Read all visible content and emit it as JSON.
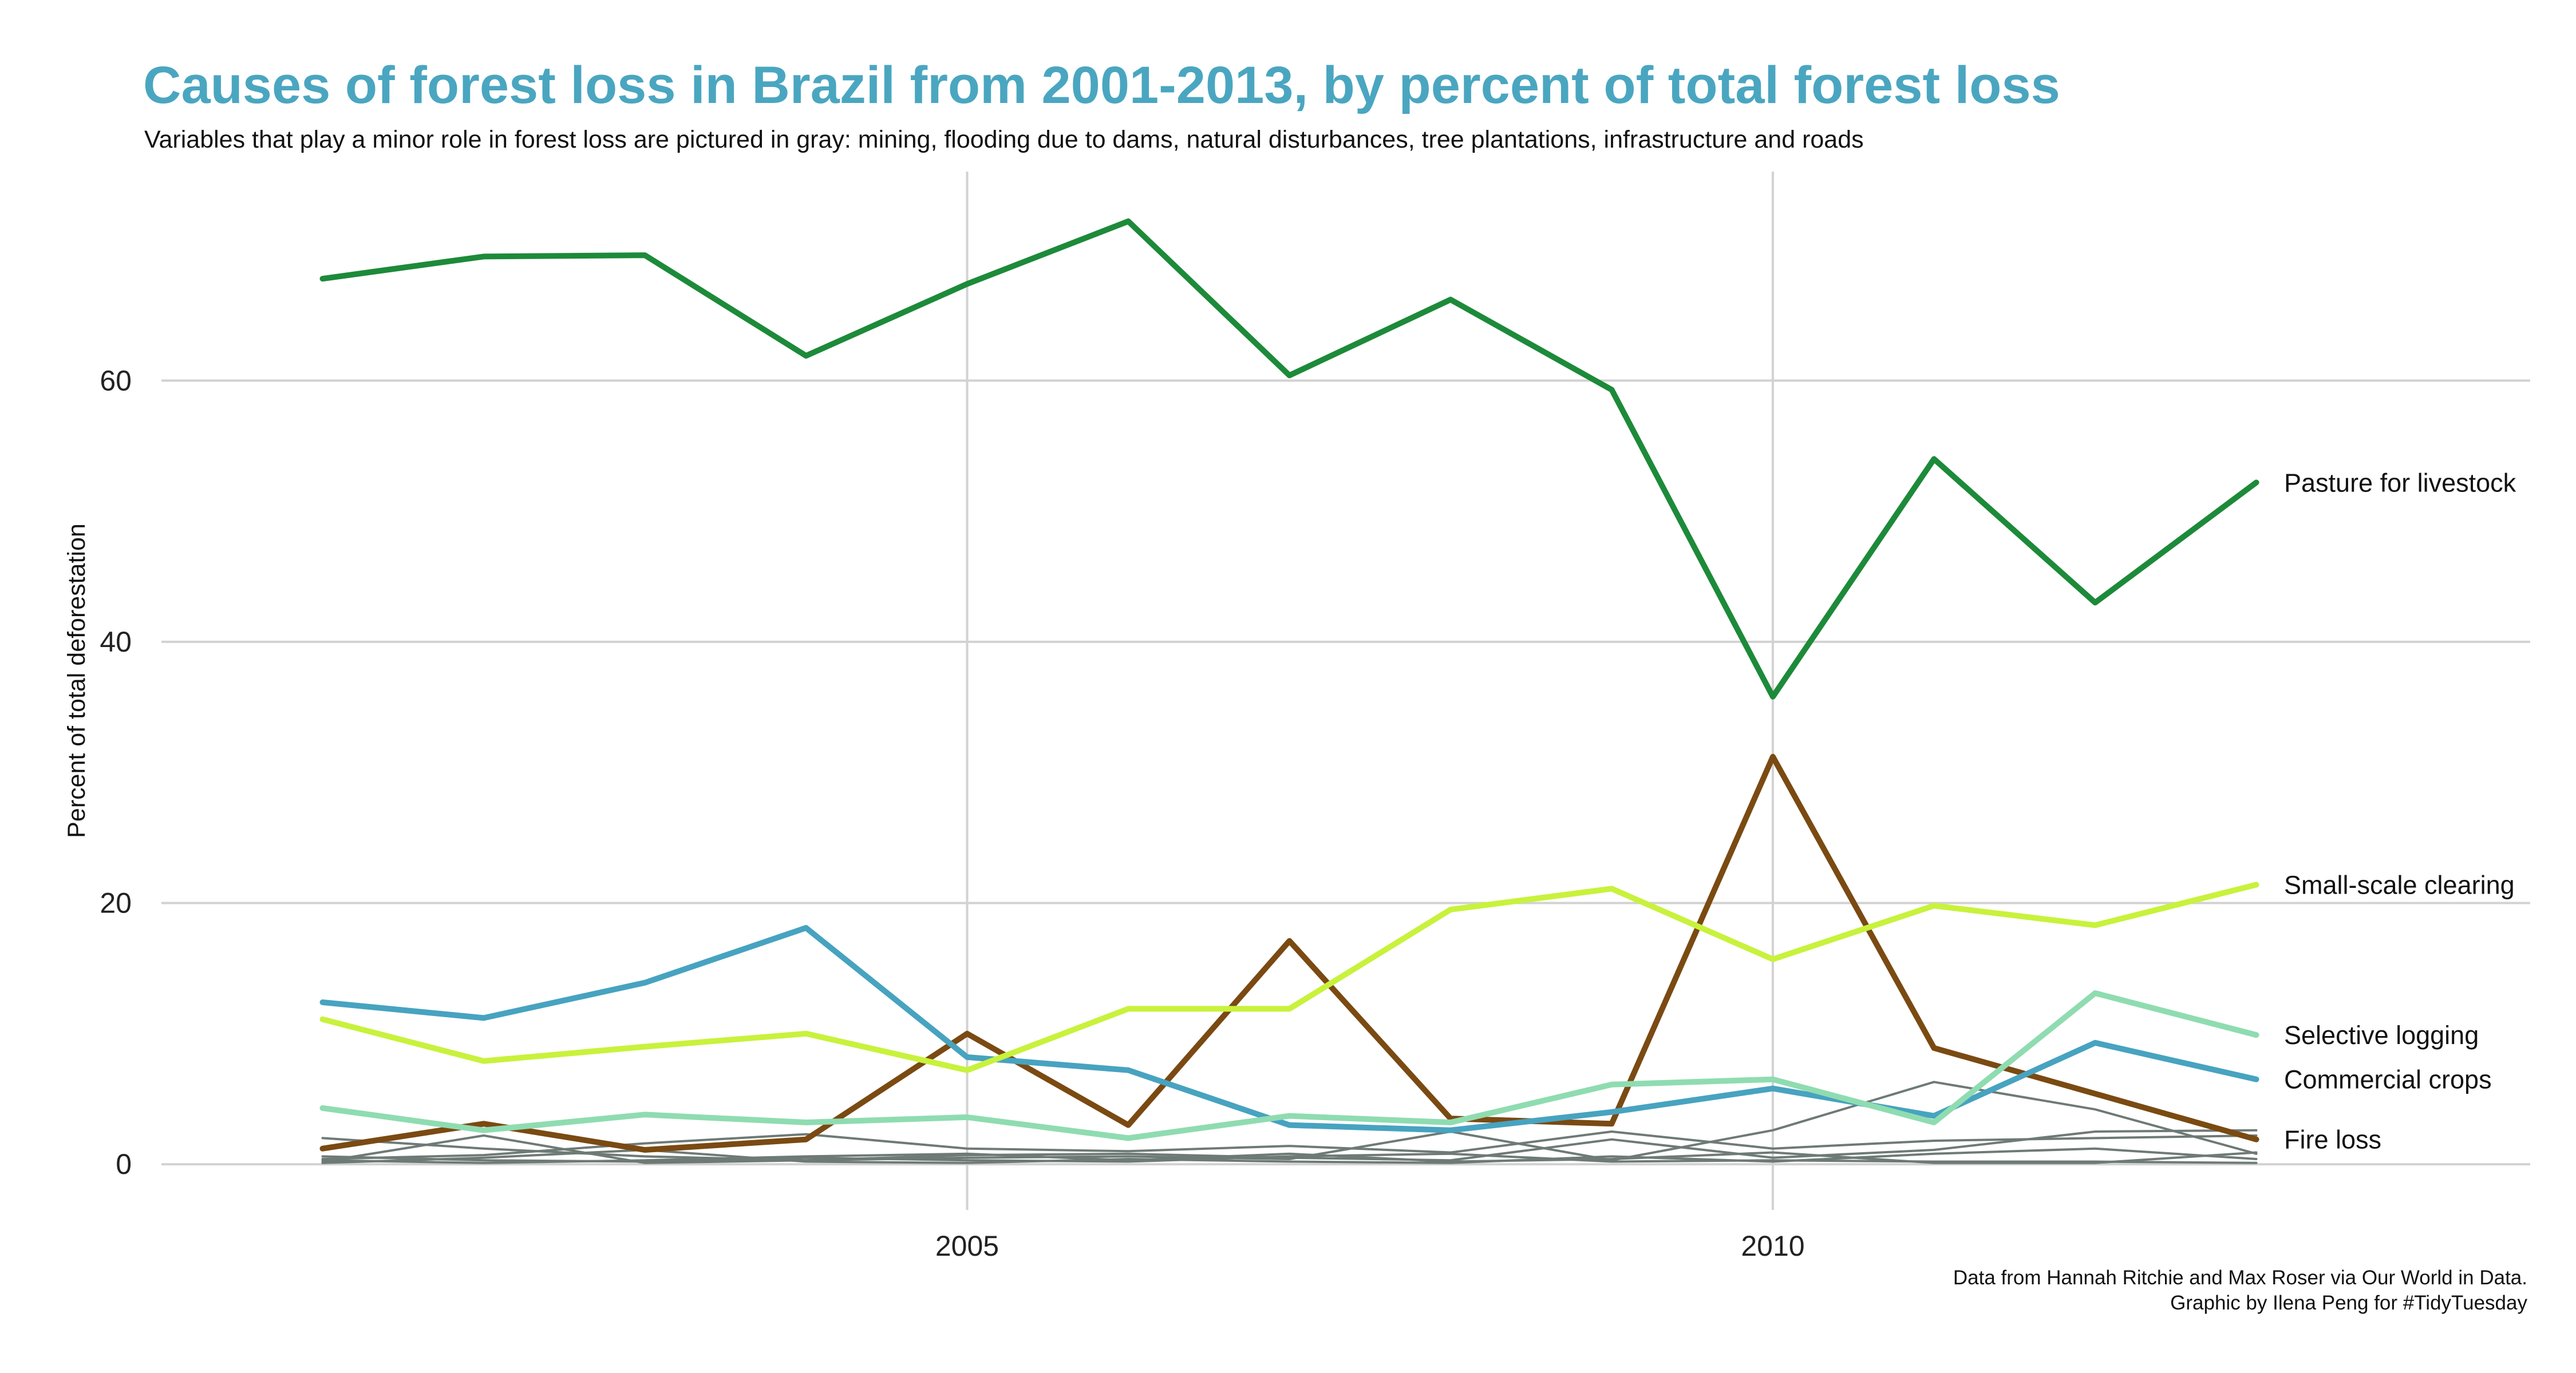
{
  "chart_data": {
    "type": "line",
    "title": "Causes of forest loss in Brazil from 2001-2013, by percent of total forest loss",
    "subtitle": "Variables that play a minor role in forest loss are pictured in gray:  mining, flooding due to dams, natural disturbances, tree plantations, infrastructure and roads",
    "xlabel": "",
    "ylabel": "Percent of total deforestation",
    "caption_lines": [
      "Data from Hannah Ritchie and Max Roser via Our World in Data.",
      "Graphic by Ilena Peng for #TidyTuesday"
    ],
    "x": [
      2001,
      2002,
      2003,
      2004,
      2005,
      2006,
      2007,
      2008,
      2009,
      2010,
      2011,
      2012,
      2013
    ],
    "xlim": [
      2000.0,
      2014.7
    ],
    "ylim": [
      -3.5,
      76
    ],
    "x_ticks": [
      2005,
      2010
    ],
    "x_tick_labels": [
      "2005",
      "2010"
    ],
    "y_ticks": [
      0,
      20,
      40,
      60
    ],
    "y_tick_labels": [
      "0",
      "20",
      "40",
      "60"
    ],
    "title_color": "#4aa6c0",
    "minor_color": "#6e7a75",
    "minor_series": [
      {
        "values": [
          0.2,
          2.2,
          0.1,
          0.3,
          0.5,
          0.6,
          0.4,
          2.5,
          0.3,
          2.6,
          6.3,
          4.2,
          0.8
        ]
      },
      {
        "values": [
          0.4,
          0.7,
          1.6,
          2.3,
          1.2,
          1.0,
          1.4,
          0.9,
          2.5,
          1.2,
          1.8,
          2.0,
          2.2
        ]
      },
      {
        "values": [
          2.0,
          1.2,
          0.6,
          0.3,
          0.7,
          0.8,
          0.5,
          0.3,
          1.9,
          0.5,
          1.1,
          2.5,
          2.6
        ]
      },
      {
        "values": [
          0.6,
          0.3,
          0.2,
          0.5,
          0.3,
          0.2,
          0.6,
          0.8,
          0.2,
          0.3,
          0.2,
          0.2,
          0.1
        ]
      },
      {
        "values": [
          0.1,
          0.5,
          1.1,
          0.2,
          0.1,
          0.4,
          0.2,
          0.1,
          0.6,
          0.2,
          0.8,
          1.2,
          0.4
        ]
      },
      {
        "values": [
          0.3,
          0.1,
          0.3,
          0.6,
          0.8,
          0.3,
          0.8,
          0.2,
          0.4,
          0.9,
          0.1,
          0.1,
          0.9
        ]
      }
    ],
    "series": [
      {
        "name": "Pasture for livestock",
        "color": "#1d8a3a",
        "values": [
          67.8,
          69.5,
          69.6,
          61.9,
          67.4,
          72.2,
          60.4,
          66.2,
          59.3,
          35.8,
          54.0,
          43.0,
          52.2
        ]
      },
      {
        "name": "Small-scale clearing",
        "color": "#c8f23c",
        "values": [
          11.1,
          7.9,
          9.0,
          10.0,
          7.2,
          11.9,
          11.9,
          19.5,
          21.1,
          15.7,
          19.8,
          18.3,
          21.4
        ]
      },
      {
        "name": "Selective logging",
        "color": "#8fdcb1",
        "values": [
          4.3,
          2.6,
          3.8,
          3.2,
          3.6,
          2.0,
          3.7,
          3.2,
          6.1,
          6.5,
          3.2,
          13.1,
          9.9
        ]
      },
      {
        "name": "Commercial crops",
        "color": "#47a3c0",
        "values": [
          12.4,
          11.2,
          13.9,
          18.1,
          8.2,
          7.2,
          3.0,
          2.6,
          4.0,
          5.8,
          3.7,
          9.3,
          6.5
        ]
      },
      {
        "name": "Fire loss",
        "color": "#7a4a12",
        "values": [
          1.2,
          3.1,
          1.1,
          1.9,
          10.0,
          3.0,
          17.1,
          3.5,
          3.1,
          31.2,
          8.9,
          5.4,
          1.9
        ]
      }
    ]
  }
}
